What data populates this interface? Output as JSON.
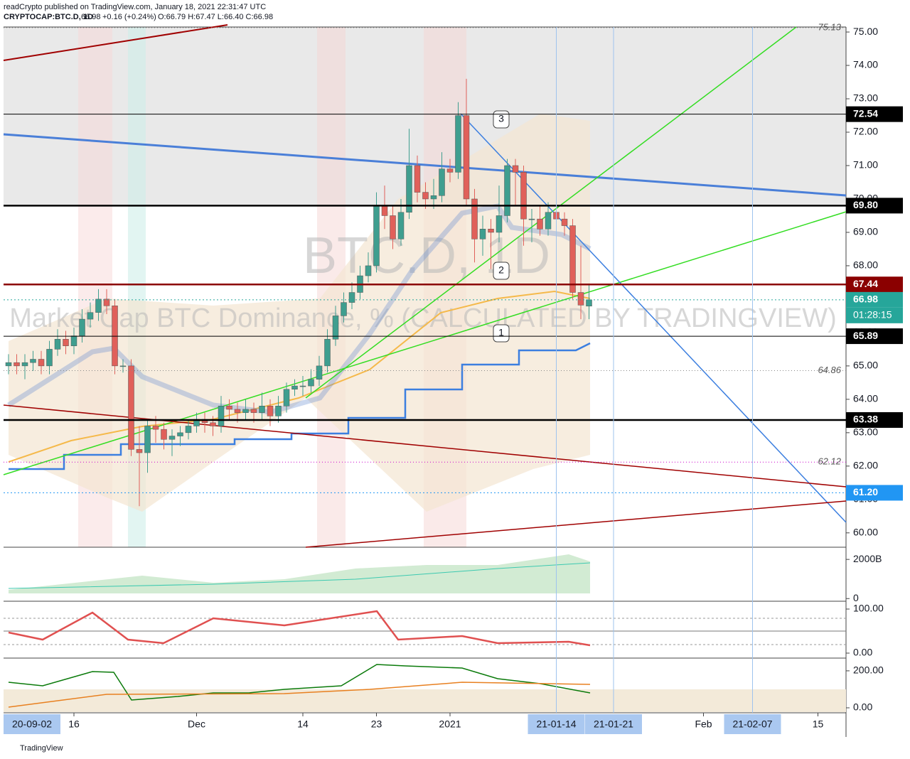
{
  "header": {
    "publisher": "readCrypto published on TradingView.com, January 18, 2021 22:31:47 UTC",
    "symbol": "CRYPTOCAP:BTC.D, 1D",
    "last": "66.98",
    "change": "+0.16 (+0.24%)",
    "ohlc": "O:66.79 H:67.47 L:66.40 C:66.98"
  },
  "watermark": {
    "symbol": "BTC.D, 1D",
    "description": "Market Cap BTC Dominance, % (CALCULATED BY TRADINGVIEW)"
  },
  "footer": "TradingView",
  "annotations": [
    "1",
    "2",
    "3"
  ],
  "chart_data": {
    "type": "candlestick",
    "categories": [
      "20-11-08",
      "20-11-09",
      "20-11-10",
      "20-11-11",
      "20-11-12",
      "20-11-13",
      "20-11-14",
      "20-11-15",
      "20-11-16",
      "20-11-17",
      "20-11-18",
      "20-11-19",
      "20-11-20",
      "20-11-21",
      "20-11-22",
      "20-11-23",
      "20-11-24",
      "20-11-25",
      "20-11-26",
      "20-11-27",
      "20-11-28",
      "20-11-29",
      "20-11-30",
      "20-12-01",
      "20-12-02",
      "20-12-03",
      "20-12-04",
      "20-12-05",
      "20-12-06",
      "20-12-07",
      "20-12-08",
      "20-12-09",
      "20-12-10",
      "20-12-11",
      "20-12-12",
      "20-12-13",
      "20-12-14",
      "20-12-15",
      "20-12-16",
      "20-12-17",
      "20-12-18",
      "20-12-19",
      "20-12-20",
      "20-12-21",
      "20-12-22",
      "20-12-23",
      "20-12-24",
      "20-12-25",
      "20-12-26",
      "20-12-27",
      "20-12-28",
      "20-12-29",
      "20-12-30",
      "20-12-31",
      "21-01-01",
      "21-01-02",
      "21-01-03",
      "21-01-04",
      "21-01-05",
      "21-01-06",
      "21-01-07",
      "21-01-08",
      "21-01-09",
      "21-01-10",
      "21-01-11",
      "21-01-12",
      "21-01-13",
      "21-01-14",
      "21-01-15",
      "21-01-16",
      "21-01-17",
      "21-01-18"
    ],
    "open": [
      65.0,
      65.1,
      65.0,
      65.1,
      65.2,
      65.0,
      65.5,
      65.8,
      65.6,
      65.9,
      66.4,
      66.6,
      67.0,
      66.8,
      65.0,
      65.0,
      62.5,
      62.4,
      63.2,
      63.1,
      62.8,
      62.9,
      63.0,
      63.2,
      63.4,
      63.3,
      63.2,
      63.8,
      63.7,
      63.6,
      63.7,
      63.6,
      63.8,
      63.5,
      63.8,
      64.3,
      64.4,
      64.4,
      64.6,
      65.0,
      65.8,
      66.5,
      66.9,
      67.2,
      67.7,
      68.0,
      69.8,
      69.5,
      68.8,
      69.6,
      71.0,
      70.2,
      70.0,
      70.1,
      70.9,
      70.8,
      72.5,
      70.0,
      68.8,
      69.1,
      69.0,
      69.5,
      71.0,
      70.8,
      69.4,
      69.4,
      69.1,
      69.6,
      69.4,
      69.2,
      67.2,
      66.79
    ],
    "high": [
      65.35,
      65.35,
      65.35,
      65.45,
      65.45,
      65.75,
      66.1,
      66.05,
      66.15,
      66.7,
      66.9,
      67.3,
      67.3,
      67.0,
      65.2,
      65.2,
      63.2,
      63.4,
      63.5,
      63.3,
      63.1,
      63.2,
      63.4,
      63.6,
      63.6,
      63.5,
      64.1,
      64.0,
      63.9,
      64.0,
      63.9,
      64.2,
      64.0,
      64.1,
      64.5,
      64.6,
      64.7,
      64.9,
      65.3,
      66.1,
      66.8,
      67.2,
      67.5,
      68.0,
      68.4,
      70.2,
      70.4,
      69.8,
      70.0,
      72.1,
      71.3,
      70.5,
      70.6,
      71.4,
      71.2,
      72.9,
      73.6,
      70.3,
      69.5,
      69.4,
      70.4,
      71.2,
      71.2,
      71.0,
      69.7,
      69.8,
      69.9,
      69.8,
      69.6,
      69.4,
      68.6,
      67.47
    ],
    "low": [
      64.75,
      64.75,
      64.6,
      64.85,
      64.75,
      64.75,
      65.3,
      65.35,
      65.35,
      65.7,
      66.15,
      66.35,
      66.55,
      64.75,
      64.8,
      62.3,
      60.8,
      61.8,
      62.7,
      62.5,
      62.3,
      62.6,
      62.8,
      63.0,
      63.0,
      62.9,
      63.0,
      63.4,
      63.3,
      63.4,
      63.3,
      63.4,
      63.2,
      63.3,
      63.6,
      64.1,
      64.1,
      64.2,
      64.4,
      64.8,
      65.6,
      66.3,
      66.7,
      67.0,
      67.5,
      67.8,
      69.1,
      68.5,
      68.6,
      69.4,
      69.9,
      69.7,
      69.7,
      69.9,
      70.5,
      70.6,
      69.8,
      68.1,
      68.3,
      67.9,
      68.7,
      69.3,
      69.8,
      68.6,
      68.7,
      68.9,
      68.9,
      69.1,
      68.9,
      67.0,
      66.4,
      66.4
    ],
    "close": [
      65.1,
      65.0,
      65.1,
      65.2,
      65.0,
      65.5,
      65.8,
      65.6,
      65.9,
      66.4,
      66.6,
      67.0,
      66.8,
      65.0,
      65.0,
      62.5,
      62.4,
      63.2,
      63.1,
      62.8,
      62.9,
      63.0,
      63.2,
      63.4,
      63.3,
      63.2,
      63.8,
      63.7,
      63.6,
      63.7,
      63.6,
      63.8,
      63.5,
      63.8,
      64.3,
      64.4,
      64.4,
      64.6,
      65.0,
      65.8,
      66.5,
      66.9,
      67.2,
      67.7,
      68.0,
      69.8,
      69.5,
      68.8,
      69.6,
      71.0,
      70.2,
      70.0,
      70.1,
      70.9,
      70.8,
      72.5,
      70.0,
      68.8,
      69.1,
      69.0,
      69.5,
      71.0,
      70.8,
      69.4,
      69.4,
      69.1,
      69.6,
      69.4,
      69.2,
      67.2,
      66.82,
      66.98
    ],
    "up_color": "#3f9e8f",
    "down_color": "#e0605a",
    "ylim": [
      59.57,
      75.15
    ],
    "yticks": [
      {
        "value": 60,
        "label": "60.00"
      },
      {
        "value": 61,
        "label": "61.00"
      },
      {
        "value": 62,
        "label": "62.00"
      },
      {
        "value": 63,
        "label": "63.00"
      },
      {
        "value": 64,
        "label": "64.00"
      },
      {
        "value": 65,
        "label": "65.00"
      },
      {
        "value": 66,
        "label": "66.00"
      },
      {
        "value": 67,
        "label": "67.00"
      },
      {
        "value": 68,
        "label": "68.00"
      },
      {
        "value": 69,
        "label": "69.00"
      },
      {
        "value": 70,
        "label": "70.00"
      },
      {
        "value": 71,
        "label": "71.00"
      },
      {
        "value": 72,
        "label": "72.00"
      },
      {
        "value": 73,
        "label": "73.00"
      },
      {
        "value": 74,
        "label": "74.00"
      },
      {
        "value": 75,
        "label": "75.00"
      }
    ],
    "xticks": [
      {
        "value": "20-11-16",
        "label": "16"
      },
      {
        "value": "20-12-01",
        "label": "Dec"
      },
      {
        "value": "20-12-14",
        "label": "14"
      },
      {
        "value": "20-12-23",
        "label": "23"
      },
      {
        "value": "21-01-01",
        "label": "2021"
      },
      {
        "value": "21-01-14",
        "label": "21-01-14",
        "highlight": true
      },
      {
        "value": "21-01-21",
        "label": "21-01-21",
        "highlight": true
      },
      {
        "value": "21-02-01",
        "label": "Feb"
      },
      {
        "value": "21-02-07",
        "label": "21-02-07",
        "highlight": true
      },
      {
        "value": "21-02-15",
        "label": "15"
      }
    ],
    "cursor_label": "20-09-02",
    "price_lines": [
      {
        "value": 72.54,
        "label": "72.54",
        "color": "#000000",
        "style": "solid"
      },
      {
        "value": 69.8,
        "label": "69.80",
        "color": "#000000",
        "style": "bold"
      },
      {
        "value": 67.44,
        "label": "67.44",
        "color": "#8b0000",
        "style": "bold"
      },
      {
        "value": 66.98,
        "label": "66.98",
        "color": "#26a69a",
        "style": "dotted"
      },
      {
        "value": 65.89,
        "label": "65.89",
        "color": "#000000",
        "style": "solid"
      },
      {
        "value": 63.38,
        "label": "63.38",
        "color": "#000000",
        "style": "bold"
      },
      {
        "value": 61.2,
        "label": "61.20",
        "color": "#2196f3",
        "style": "dotted"
      }
    ],
    "countdown": "01:28:15",
    "level_notes": [
      {
        "value": 75.13,
        "label": "75.13",
        "color": "#888888"
      },
      {
        "value": 64.86,
        "label": "64.86",
        "color": "#888888"
      },
      {
        "value": 62.12,
        "label": "62.12",
        "color": "#cc00cc"
      }
    ],
    "panes": [
      {
        "ylim": [
          -100,
          2550
        ],
        "ticks": [
          {
            "value": 2000,
            "label": "2000B"
          },
          0
        ]
      },
      {
        "ylim": [
          -9.7,
          114.5
        ],
        "ticks": [
          {
            "value": 100,
            "label": "100.00"
          },
          {
            "value": 0,
            "label": "0.00"
          }
        ]
      },
      {
        "ylim": [
          -27,
          265
        ],
        "ticks": [
          {
            "value": 200,
            "label": "200.00"
          },
          {
            "value": 0,
            "label": "0.00"
          }
        ]
      }
    ]
  }
}
